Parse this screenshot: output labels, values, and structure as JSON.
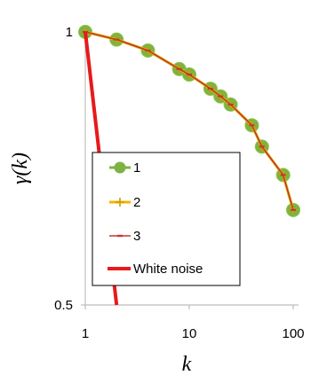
{
  "chart_data": {
    "type": "line",
    "xscale": "log",
    "xlim": [
      1,
      100
    ],
    "ylim": [
      0.5,
      1
    ],
    "xlabel": "k",
    "ylabel": "γ(k)",
    "xticks": [
      "1",
      "10",
      "100"
    ],
    "yticks": [
      "1",
      "0.5"
    ],
    "grid": false,
    "legend_position": "inside-left",
    "series": [
      {
        "name": "1",
        "color": "#7cb342",
        "marker": "circle",
        "x": [
          1,
          2,
          4,
          8,
          10,
          16,
          20,
          25,
          40,
          50,
          80,
          100
        ],
        "y": [
          1,
          0.986,
          0.966,
          0.932,
          0.922,
          0.896,
          0.882,
          0.867,
          0.829,
          0.79,
          0.738,
          0.674
        ]
      },
      {
        "name": "2",
        "color": "#f4b400",
        "marker": "plus",
        "x": [
          1,
          2,
          4,
          8,
          10,
          16,
          20,
          25,
          40,
          50,
          80,
          100
        ],
        "y": [
          1,
          0.986,
          0.966,
          0.932,
          0.922,
          0.896,
          0.882,
          0.867,
          0.829,
          0.79,
          0.738,
          0.674
        ]
      },
      {
        "name": "3",
        "color": "#c0392b",
        "marker": "dash",
        "x": [
          1,
          2,
          4,
          8,
          10,
          16,
          20,
          25,
          40,
          50,
          80,
          100
        ],
        "y": [
          1,
          0.986,
          0.966,
          0.932,
          0.922,
          0.896,
          0.882,
          0.867,
          0.829,
          0.79,
          0.738,
          0.674
        ]
      },
      {
        "name": "White noise",
        "color": "#e8191a",
        "marker": "none",
        "x": [
          1,
          2
        ],
        "y": [
          1,
          0.5
        ]
      }
    ]
  }
}
